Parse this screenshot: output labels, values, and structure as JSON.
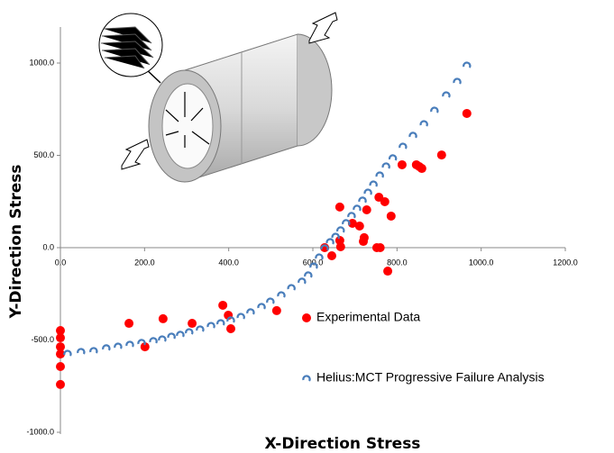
{
  "chart_data": {
    "type": "scatter",
    "x_label": "X-Direction Stress",
    "y_label": "Y-Direction Stress",
    "xlim": [
      0,
      1200
    ],
    "xticks": [
      {
        "value": 0,
        "label": "0.0"
      },
      {
        "value": 200,
        "label": "200.0"
      },
      {
        "value": 400,
        "label": "400.0"
      },
      {
        "value": 600,
        "label": "600.0"
      },
      {
        "value": 800,
        "label": "800.0"
      },
      {
        "value": 1000,
        "label": "1000.0"
      },
      {
        "value": 1200,
        "label": "1200.0"
      }
    ],
    "ylim": [
      -1000,
      1000
    ],
    "yticks": [
      {
        "value": -1000,
        "label": "-1000.0"
      },
      {
        "value": -500,
        "label": "-500.0"
      },
      {
        "value": 0,
        "label": "0.0"
      },
      {
        "value": 500,
        "label": "500.0"
      },
      {
        "value": 1000,
        "label": "1000.0"
      }
    ],
    "grid": false,
    "series": [
      {
        "name": "Experimental Data",
        "color": "#ff0000",
        "marker": "circle",
        "x": [
          0,
          0,
          0,
          0,
          0,
          0,
          163,
          244,
          201,
          313,
          386,
          399,
          405,
          514,
          628,
          645,
          664,
          664,
          666,
          694,
          711,
          720,
          722,
          728,
          752,
          760,
          757,
          771,
          778,
          786,
          812,
          846,
          853,
          859,
          906,
          966
        ],
        "values": [
          -449,
          -488,
          -537,
          -576,
          -644,
          -741,
          -410,
          -385,
          -537,
          -410,
          -312,
          -366,
          -439,
          -341,
          0,
          -44,
          220,
          39,
          5,
          132,
          117,
          34,
          54,
          205,
          0,
          0,
          273,
          249,
          -127,
          171,
          449,
          449,
          439,
          429,
          502,
          727
        ]
      },
      {
        "name": "Helius:MCT Progressive Failure Analysis",
        "color": "#4a7ebb",
        "marker": "arc",
        "x": [
          17,
          49,
          79,
          109,
          137,
          165,
          193,
          221,
          242,
          264,
          285,
          306,
          332,
          358,
          381,
          405,
          429,
          452,
          478,
          499,
          525,
          549,
          574,
          589,
          602,
          615,
          628,
          641,
          654,
          666,
          679,
          692,
          705,
          718,
          731,
          744,
          759,
          774,
          790,
          814,
          838,
          864,
          889,
          917,
          943,
          966
        ],
        "values": [
          -571,
          -561,
          -556,
          -541,
          -532,
          -522,
          -512,
          -502,
          -493,
          -478,
          -468,
          -454,
          -439,
          -420,
          -405,
          -390,
          -371,
          -346,
          -317,
          -288,
          -254,
          -215,
          -180,
          -146,
          -98,
          -49,
          0,
          34,
          63,
          98,
          137,
          176,
          215,
          259,
          302,
          346,
          395,
          444,
          488,
          551,
          610,
          673,
          746,
          829,
          902,
          990
        ]
      }
    ]
  }
}
